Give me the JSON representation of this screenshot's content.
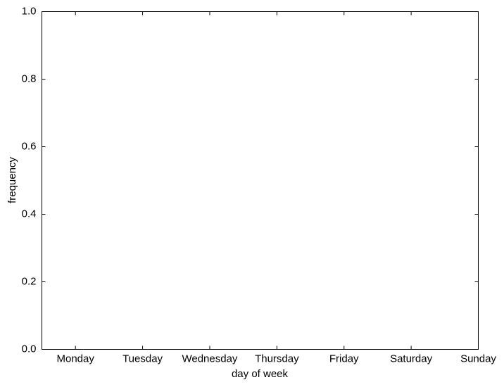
{
  "chart_data": {
    "type": "bar",
    "xlabel": "day of week",
    "ylabel": "frequency",
    "categories": [
      "Monday",
      "Tuesday",
      "Wednesday",
      "Thursday",
      "Friday",
      "Saturday",
      "Sunday"
    ],
    "ylim": [
      0,
      1
    ],
    "yticks": [
      {
        "value": 0,
        "label": "0.0"
      },
      0.2,
      0.4,
      0.6,
      0.8,
      {
        "value": 1,
        "label": "1.0"
      }
    ],
    "color": "#0000ff"
  }
}
